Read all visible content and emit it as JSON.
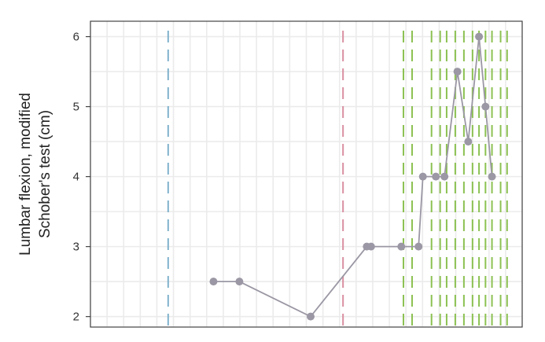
{
  "chart_data": {
    "type": "line",
    "ylabel": [
      "Lumbar flexion, modified",
      "Schober's test (cm)"
    ],
    "xlabel": "",
    "ylim": [
      1.85,
      6.22
    ],
    "xlim": [
      0,
      100
    ],
    "yticks": [
      2,
      3,
      4,
      5,
      6
    ],
    "ytick_labels": [
      "2",
      "3",
      "4",
      "5",
      "6"
    ],
    "grid": true,
    "series": [
      {
        "color": "#9b97a4",
        "points": [
          {
            "x": 28.5,
            "y": 2.5
          },
          {
            "x": 34.5,
            "y": 2.5
          },
          {
            "x": 51.0,
            "y": 2.0
          },
          {
            "x": 64.0,
            "y": 3.0
          },
          {
            "x": 65.0,
            "y": 3.0
          },
          {
            "x": 72.0,
            "y": 3.0
          },
          {
            "x": 76.0,
            "y": 3.0
          },
          {
            "x": 77.0,
            "y": 4.0
          },
          {
            "x": 80.0,
            "y": 4.0
          },
          {
            "x": 82.0,
            "y": 4.0
          },
          {
            "x": 85.0,
            "y": 5.5
          },
          {
            "x": 87.5,
            "y": 4.5
          },
          {
            "x": 90.0,
            "y": 6.0
          },
          {
            "x": 91.5,
            "y": 5.0
          },
          {
            "x": 93.0,
            "y": 4.0
          }
        ]
      }
    ],
    "reference_lines": [
      {
        "x": 18.0,
        "color": "#7fb2cc"
      },
      {
        "x": 58.5,
        "color": "#d98fa0"
      },
      {
        "x": 72.5,
        "color": "#8cc152"
      },
      {
        "x": 74.5,
        "color": "#8cc152"
      },
      {
        "x": 79.0,
        "color": "#8cc152"
      },
      {
        "x": 81.0,
        "color": "#8cc152"
      },
      {
        "x": 82.5,
        "color": "#8cc152"
      },
      {
        "x": 84.5,
        "color": "#8cc152"
      },
      {
        "x": 86.5,
        "color": "#8cc152"
      },
      {
        "x": 88.5,
        "color": "#8cc152"
      },
      {
        "x": 90.0,
        "color": "#8cc152"
      },
      {
        "x": 91.5,
        "color": "#8cc152"
      },
      {
        "x": 93.0,
        "color": "#8cc152"
      },
      {
        "x": 95.0,
        "color": "#8cc152"
      },
      {
        "x": 96.5,
        "color": "#8cc152"
      }
    ]
  },
  "style": {
    "grid_color": "#ebebeb",
    "frame_color": "#444444",
    "background": "#ffffff"
  }
}
